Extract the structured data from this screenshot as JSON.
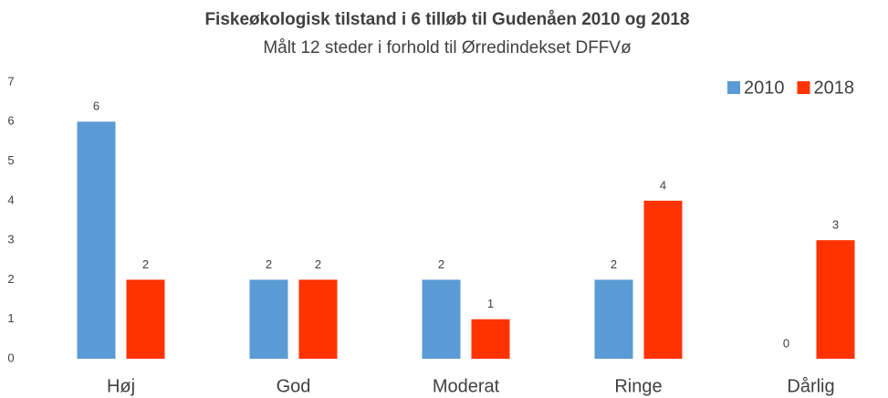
{
  "chart_data": {
    "type": "bar",
    "title": "Fiskeøkologisk tilstand i 6 tilløb til Gudenåen 2010 og 2018",
    "subtitle": "Målt 12 steder i forhold til Ørredindekset DFFVø",
    "categories": [
      "Høj",
      "God",
      "Moderat",
      "Ringe",
      "Dårlig"
    ],
    "series": [
      {
        "name": "2010",
        "color": "#5b9bd5",
        "values": [
          6,
          2,
          2,
          2,
          0
        ]
      },
      {
        "name": "2018",
        "color": "#ff3300",
        "values": [
          2,
          2,
          1,
          4,
          3
        ]
      }
    ],
    "ylim": [
      0,
      7
    ],
    "yticks": [
      0,
      1,
      2,
      3,
      4,
      5,
      6,
      7
    ],
    "grid": false,
    "legend": "top-right"
  }
}
